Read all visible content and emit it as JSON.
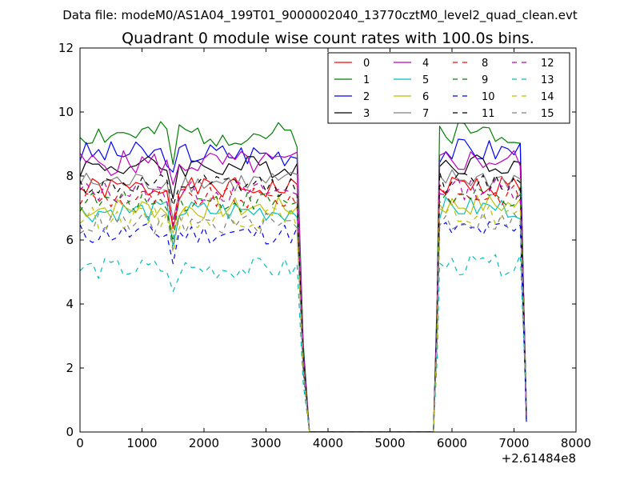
{
  "chart_data": {
    "type": "line",
    "suptitle": "Data file: modeM0/AS1A04_199T01_9000002040_13770cztM0_level2_quad_clean.evt",
    "title": "Quadrant 0 module wise count rates with 100.0s bins.",
    "xlabel": "",
    "ylabel": "",
    "x_offset_label": "+2.61484e8",
    "xlim": [
      0,
      8000
    ],
    "ylim": [
      0,
      12
    ],
    "x_ticks": [
      0,
      1000,
      2000,
      3000,
      4000,
      5000,
      6000,
      7000,
      8000
    ],
    "y_ticks": [
      0,
      2,
      4,
      6,
      8,
      10,
      12
    ],
    "legend_position": "top-right",
    "bin_width_s": 100,
    "segments": [
      {
        "t0": 0,
        "t1": 3500
      },
      {
        "t0": 5800,
        "t1": 7200
      }
    ],
    "series": [
      {
        "name": "0",
        "color": "#ff0000",
        "dash": "solid",
        "level": 7.6,
        "amp": 0.35,
        "seed": 1
      },
      {
        "name": "1",
        "color": "#008000",
        "dash": "solid",
        "level": 9.3,
        "amp": 0.4,
        "seed": 2
      },
      {
        "name": "2",
        "color": "#0000ff",
        "dash": "solid",
        "level": 8.7,
        "amp": 0.4,
        "seed": 3
      },
      {
        "name": "3",
        "color": "#000000",
        "dash": "solid",
        "level": 8.3,
        "amp": 0.35,
        "seed": 4
      },
      {
        "name": "4",
        "color": "#bf00bf",
        "dash": "solid",
        "level": 8.4,
        "amp": 0.4,
        "seed": 5
      },
      {
        "name": "5",
        "color": "#00bfbf",
        "dash": "solid",
        "level": 6.9,
        "amp": 0.35,
        "seed": 6
      },
      {
        "name": "6",
        "color": "#bfbf00",
        "dash": "solid",
        "level": 7.0,
        "amp": 0.35,
        "seed": 7
      },
      {
        "name": "7",
        "color": "#808080",
        "dash": "solid",
        "level": 7.8,
        "amp": 0.35,
        "seed": 8
      },
      {
        "name": "8",
        "color": "#ff0000",
        "dash": "dashed",
        "level": 7.3,
        "amp": 0.35,
        "seed": 9
      },
      {
        "name": "9",
        "color": "#008000",
        "dash": "dashed",
        "level": 7.2,
        "amp": 0.35,
        "seed": 10
      },
      {
        "name": "10",
        "color": "#0000ff",
        "dash": "dashed",
        "level": 6.2,
        "amp": 0.35,
        "seed": 11
      },
      {
        "name": "11",
        "color": "#000000",
        "dash": "dashed",
        "level": 7.7,
        "amp": 0.35,
        "seed": 12
      },
      {
        "name": "12",
        "color": "#bf00bf",
        "dash": "dashed",
        "level": 7.5,
        "amp": 0.35,
        "seed": 13
      },
      {
        "name": "13",
        "color": "#00bfbf",
        "dash": "dashed",
        "level": 5.1,
        "amp": 0.35,
        "seed": 14
      },
      {
        "name": "14",
        "color": "#bfbf00",
        "dash": "dashed",
        "level": 6.7,
        "amp": 0.35,
        "seed": 15
      },
      {
        "name": "15",
        "color": "#808080",
        "dash": "dashed",
        "level": 6.5,
        "amp": 0.35,
        "seed": 16
      }
    ]
  }
}
